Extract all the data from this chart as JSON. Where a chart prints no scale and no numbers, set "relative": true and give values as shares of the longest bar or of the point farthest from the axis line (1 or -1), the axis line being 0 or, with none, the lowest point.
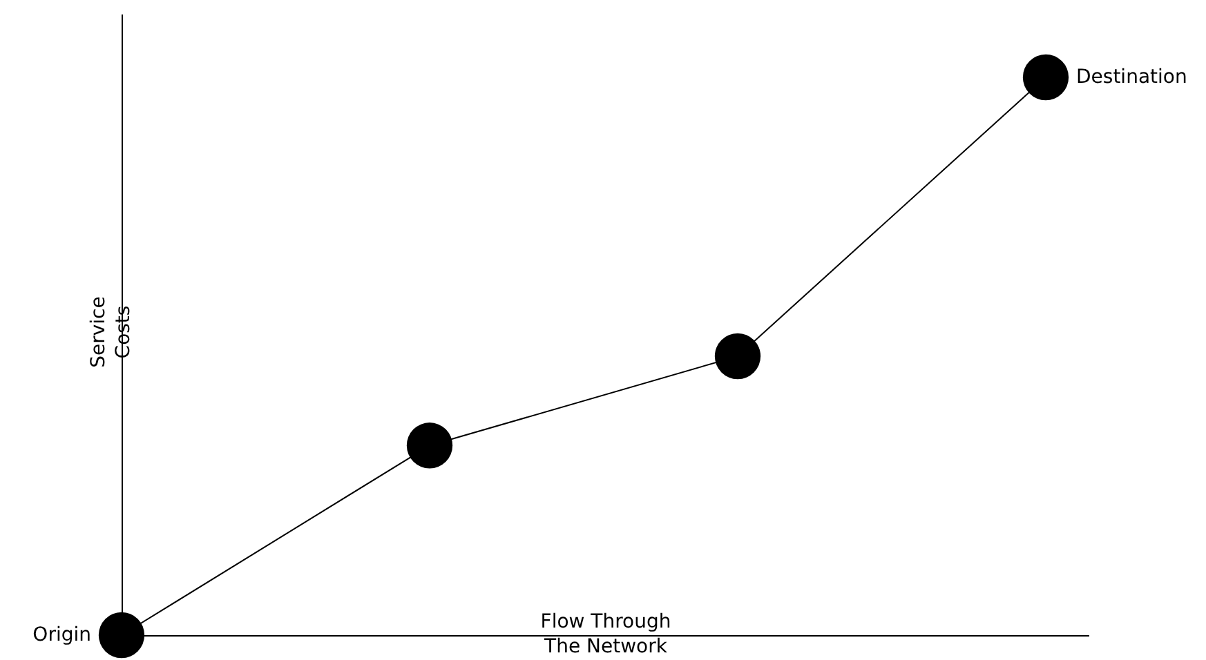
{
  "chart_data": {
    "type": "line",
    "relative": true,
    "xlabel": "Flow Through\nThe Network",
    "ylabel": "Service\nCosts",
    "categories": [
      "Origin",
      null,
      null,
      "Destination"
    ],
    "series": [
      {
        "color": "#000000",
        "values": [
          0,
          0.34,
          0.5,
          1
        ]
      }
    ],
    "marker": "circle",
    "line_style": "solid",
    "grid": false
  }
}
